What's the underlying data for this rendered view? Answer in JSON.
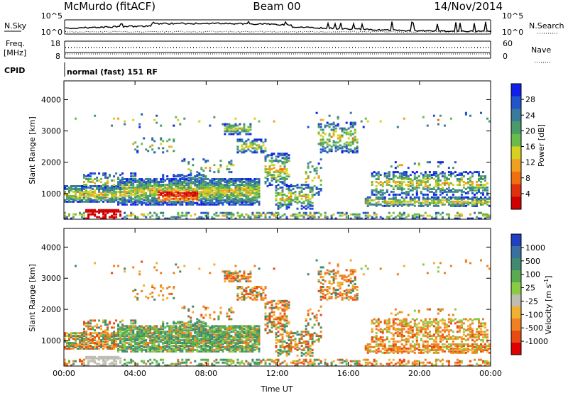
{
  "header": {
    "station": "McMurdo (fitACF)",
    "beam": "Beam 00",
    "date": "14/Nov/2014"
  },
  "noise_panel": {
    "left_label": "N.Sky",
    "right_label": "N.Search",
    "left_ticks": [
      "10^5",
      "10^0"
    ],
    "right_ticks": [
      "10^5",
      "10^0"
    ]
  },
  "freq_panel": {
    "left_label_1": "Freq.",
    "left_label_2": "[MHz]",
    "left_ticks": [
      "18",
      "8"
    ],
    "right_label": "Nave",
    "right_ticks": [
      "60",
      "0"
    ]
  },
  "cpid": {
    "label": "CPID",
    "mode": "normal (fast) 151 RF"
  },
  "chart_data": [
    {
      "type": "heatmap",
      "name": "power",
      "ylabel": "Slant Range [km]",
      "yticks": [
        "1000",
        "2000",
        "3000",
        "4000"
      ],
      "ylim": [
        180,
        4600
      ],
      "xticks": [
        "00:00",
        "04:00",
        "08:00",
        "12:00",
        "16:00",
        "20:00",
        "00:00"
      ],
      "colorbar": {
        "label": "Power [dB]",
        "ticks": [
          "28",
          "24",
          "20",
          "16",
          "12",
          "8",
          "4"
        ],
        "colors": [
          "#1020e8",
          "#2255cc",
          "#3a7a9a",
          "#4a9a6a",
          "#6abc4a",
          "#d8d020",
          "#f0a020",
          "#f07010",
          "#e03010",
          "#d00000"
        ]
      }
    },
    {
      "type": "heatmap",
      "name": "velocity",
      "ylabel": "Slant Range [km]",
      "yticks": [
        "1000",
        "2000",
        "3000",
        "4000"
      ],
      "ylim": [
        180,
        4600
      ],
      "xticks": [
        "00:00",
        "04:00",
        "08:00",
        "12:00",
        "16:00",
        "20:00",
        "00:00"
      ],
      "xlabel": "Time UT",
      "colorbar": {
        "label": "Velocity [m s",
        "label_sup": "-1",
        "label_end": "]",
        "ticks": [
          "1000",
          "500",
          "100",
          "25",
          "-25",
          "-100",
          "-500",
          "-1000"
        ],
        "colors": [
          "#2040c0",
          "#3a70a0",
          "#3f8a70",
          "#5aaa50",
          "#88cc44",
          "#bdbdb0",
          "#f0b030",
          "#f08020",
          "#e84a10",
          "#e00000"
        ]
      }
    }
  ]
}
